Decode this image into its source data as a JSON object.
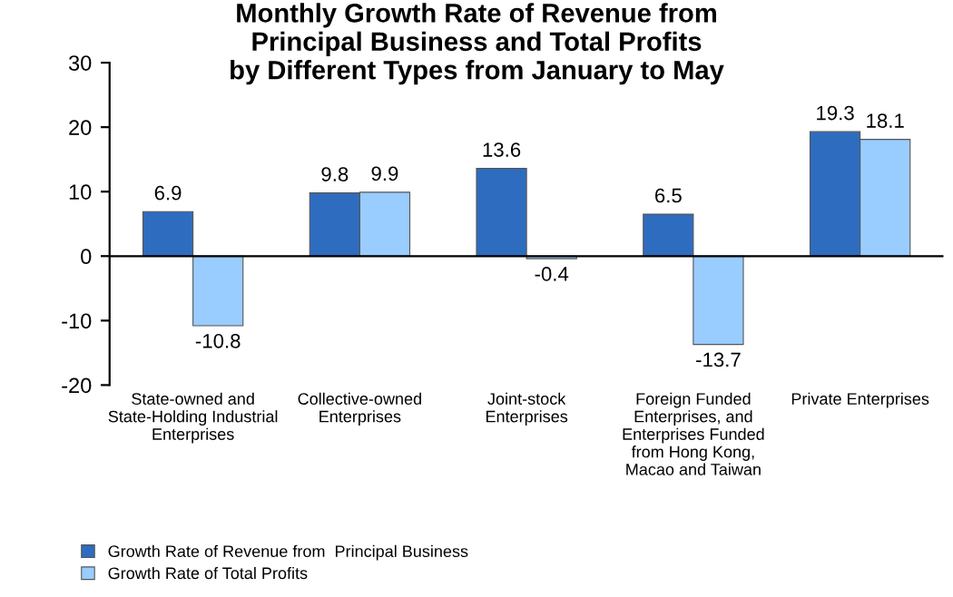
{
  "chart_data": {
    "type": "bar",
    "title": "Monthly Growth Rate of Revenue from\nPrincipal Business and Total Profits\nby Different Types from January to May",
    "categories": [
      "State-owned and\nState-Holding Industrial\nEnterprises",
      "Collective-owned\nEnterprises",
      "Joint-stock\nEnterprises",
      "Foreign Funded\nEnterprises, and\nEnterprises Funded\nfrom Hong Kong,\nMacao and Taiwan",
      "Private Enterprises"
    ],
    "series": [
      {
        "name": "Growth Rate of Revenue from  Principal Business",
        "color": "#2e6cc0",
        "values": [
          6.9,
          9.8,
          13.6,
          6.5,
          19.3
        ]
      },
      {
        "name": "Growth Rate of Total Profits",
        "color": "#99ccff",
        "values": [
          -10.8,
          9.9,
          -0.4,
          -13.7,
          18.1
        ]
      }
    ],
    "ylim": [
      -20,
      30
    ],
    "yticks": [
      -20,
      -10,
      0,
      10,
      20,
      30
    ],
    "ref_lines": [
      {
        "axis": "y",
        "value": 0,
        "color": "#000000"
      }
    ],
    "data_labels": true,
    "grid": false,
    "legend": "bottom left"
  }
}
